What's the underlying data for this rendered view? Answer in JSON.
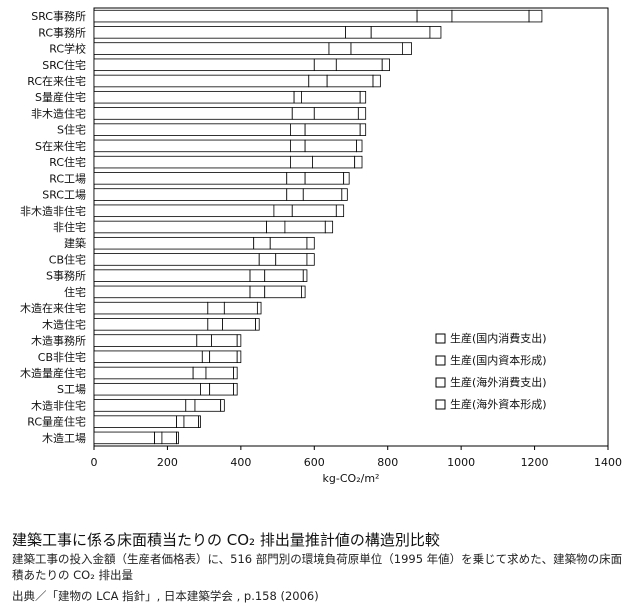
{
  "chart_data": {
    "type": "bar",
    "orientation": "horizontal",
    "stacked": true,
    "categories": [
      "SRC事務所",
      "RC事務所",
      "RC学校",
      "SRC住宅",
      "RC在来住宅",
      "S量産住宅",
      "非木造住宅",
      "S住宅",
      "S在来住宅",
      "RC住宅",
      "RC工場",
      "SRC工場",
      "非木造非住宅",
      "非住宅",
      "建築",
      "CB住宅",
      "S事務所",
      "住宅",
      "木造在来住宅",
      "木造住宅",
      "木造事務所",
      "CB非住宅",
      "木造量産住宅",
      "S工場",
      "木造非住宅",
      "RC量産住宅",
      "木造工場"
    ],
    "series": [
      {
        "name": "生産(国内消費支出)",
        "values": [
          880,
          685,
          640,
          600,
          585,
          545,
          540,
          535,
          535,
          535,
          525,
          525,
          490,
          470,
          435,
          450,
          425,
          425,
          310,
          310,
          280,
          295,
          270,
          290,
          250,
          225,
          165
        ]
      },
      {
        "name": "生産(国内資本形成)",
        "values": [
          95,
          70,
          60,
          60,
          50,
          20,
          60,
          40,
          40,
          60,
          50,
          45,
          50,
          50,
          45,
          45,
          40,
          40,
          45,
          40,
          40,
          20,
          35,
          25,
          25,
          20,
          20
        ]
      },
      {
        "name": "生産(海外消費支出)",
        "values": [
          210,
          160,
          140,
          125,
          125,
          160,
          120,
          150,
          140,
          115,
          105,
          105,
          120,
          110,
          100,
          85,
          105,
          100,
          90,
          90,
          70,
          75,
          75,
          65,
          70,
          40,
          40
        ]
      },
      {
        "name": "生産(海外資本形成)",
        "values": [
          35,
          30,
          25,
          20,
          20,
          15,
          20,
          15,
          15,
          20,
          15,
          15,
          20,
          20,
          20,
          20,
          10,
          10,
          10,
          10,
          10,
          10,
          10,
          10,
          10,
          5,
          5
        ]
      }
    ],
    "xlabel": "kg-CO₂/m²",
    "xlim": [
      0,
      1400
    ],
    "xticks": [
      "0",
      "200",
      "400",
      "600",
      "800",
      "1000",
      "1200",
      "1400"
    ],
    "grid": false,
    "legend_position": "bottom-right",
    "bar_color": "#ffffff",
    "edge_color": "#000000"
  },
  "caption": {
    "title": "建築工事に係る床面積当たりの CO₂ 排出量推計値の構造別比較",
    "description": "建築工事の投入金額（生産者価格表）に、516 部門別の環境負荷原単位（1995 年値）を乗じて求めた、建築物の床面積あたりの CO₂ 排出量",
    "source": "出典／「建物の LCA 指針」, 日本建築学会 , p.158 (2006)"
  }
}
